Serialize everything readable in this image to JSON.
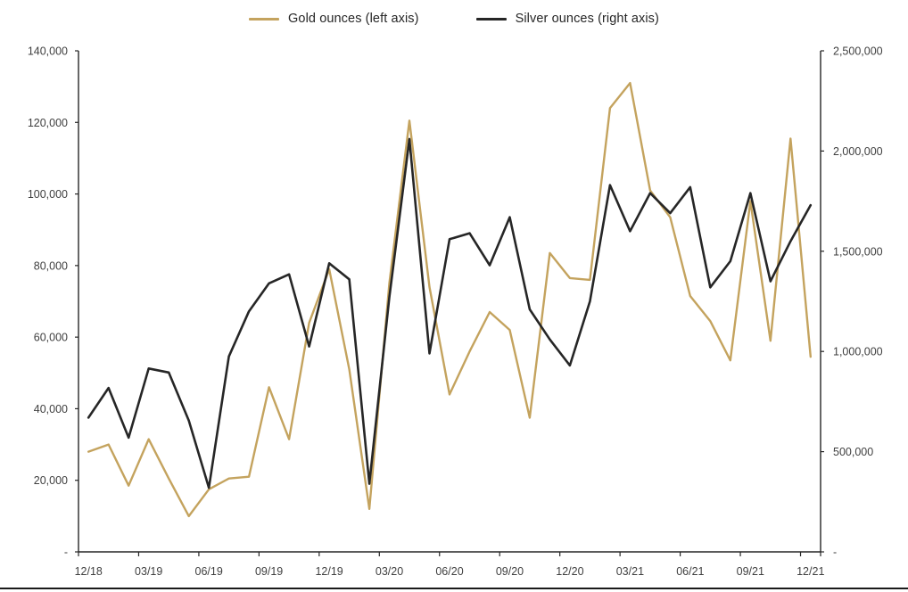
{
  "page": {
    "background": "#ffffff"
  },
  "legend": {
    "items": [
      {
        "label": "Gold ounces (left axis)",
        "color": "#C4A35E"
      },
      {
        "label": "Silver ounces (right axis)",
        "color": "#262626"
      }
    ]
  },
  "chart_data": {
    "type": "line",
    "title": "",
    "xlabel": "",
    "ylabel_left": "",
    "ylabel_right": "",
    "grid": false,
    "legend_position": "top",
    "x_categories": [
      "12/18",
      "01/19",
      "02/19",
      "03/19",
      "04/19",
      "05/19",
      "06/19",
      "07/19",
      "08/19",
      "09/19",
      "10/19",
      "11/19",
      "12/19",
      "01/20",
      "02/20",
      "03/20",
      "04/20",
      "05/20",
      "06/20",
      "07/20",
      "08/20",
      "09/20",
      "10/20",
      "11/20",
      "12/20",
      "01/21",
      "02/21",
      "03/21",
      "04/21",
      "05/21",
      "06/21",
      "07/21",
      "08/21",
      "09/21",
      "10/21",
      "11/21",
      "12/21"
    ],
    "x_tick_labels": [
      "12/18",
      "03/19",
      "06/19",
      "09/19",
      "12/19",
      "03/20",
      "06/20",
      "09/20",
      "12/20",
      "03/21",
      "06/21",
      "09/21",
      "12/21"
    ],
    "x_tick_every": 3,
    "series": [
      {
        "name": "Gold ounces (left axis)",
        "axis": "left",
        "color": "#C4A35E",
        "stroke_width": 2.4,
        "values": [
          28000,
          30000,
          18500,
          31500,
          20500,
          10000,
          17500,
          20500,
          21000,
          46000,
          31500,
          64000,
          79000,
          51000,
          12000,
          75000,
          120500,
          74000,
          44000,
          56000,
          67000,
          62000,
          37500,
          83500,
          76500,
          76000,
          124000,
          131000,
          101000,
          93500,
          71500,
          64500,
          53500,
          98000,
          59000,
          115500,
          54500
        ]
      },
      {
        "name": "Silver ounces (right axis)",
        "axis": "right",
        "color": "#262626",
        "stroke_width": 2.6,
        "values": [
          670000,
          818000,
          570000,
          915000,
          895000,
          655000,
          320000,
          975000,
          1200000,
          1340000,
          1385000,
          1025000,
          1440000,
          1360000,
          340000,
          1270000,
          2060000,
          990000,
          1560000,
          1590000,
          1430000,
          1670000,
          1210000,
          1060000,
          930000,
          1250000,
          1830000,
          1600000,
          1790000,
          1690000,
          1820000,
          1320000,
          1450000,
          1790000,
          1350000,
          1550000,
          1730000
        ]
      }
    ],
    "left_axis": {
      "min": 0,
      "max": 140000,
      "tick_values": [
        0,
        20000,
        40000,
        60000,
        80000,
        100000,
        120000,
        140000
      ],
      "tick_labels": [
        "-",
        "20,000",
        "40,000",
        "60,000",
        "80,000",
        "100,000",
        "120,000",
        "140,000"
      ]
    },
    "right_axis": {
      "min": 0,
      "max": 2500000,
      "tick_values": [
        0,
        500000,
        1000000,
        1500000,
        2000000,
        2500000
      ],
      "tick_labels": [
        "-",
        "500,000",
        "1,000,000",
        "1,500,000",
        "2,000,000",
        "2,500,000"
      ]
    },
    "axis_text_color": "#3f3f3f",
    "axis_line_color": "#262626"
  }
}
